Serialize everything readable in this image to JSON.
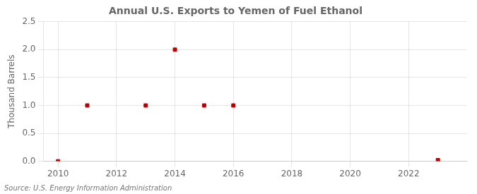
{
  "chart_data": {
    "type": "scatter",
    "title": "Annual U.S. Exports to Yemen of Fuel Ethanol",
    "ylabel": "Thousand Barrels",
    "annotations": [
      "Source: U.S. Energy Information Administration"
    ],
    "x": [
      2010,
      2011,
      2013,
      2014,
      2015,
      2016,
      2023
    ],
    "values": [
      0.0,
      1.0,
      1.0,
      2.0,
      1.0,
      1.0,
      0.02
    ],
    "color": "#bb0000",
    "marker": "square",
    "xlim": [
      2009.5,
      2024
    ],
    "xticks": [
      2010,
      2012,
      2014,
      2016,
      2018,
      2020,
      2022
    ],
    "ylim": [
      0.0,
      2.5
    ],
    "yticks": [
      {
        "value": 0.0,
        "label": "0.0"
      },
      0.5,
      {
        "value": 1.0,
        "label": "1.0"
      },
      {
        "value": 1.5,
        "label": "1.5"
      },
      {
        "value": 2.0,
        "label": "2.0"
      },
      2.5
    ],
    "grid": true
  }
}
